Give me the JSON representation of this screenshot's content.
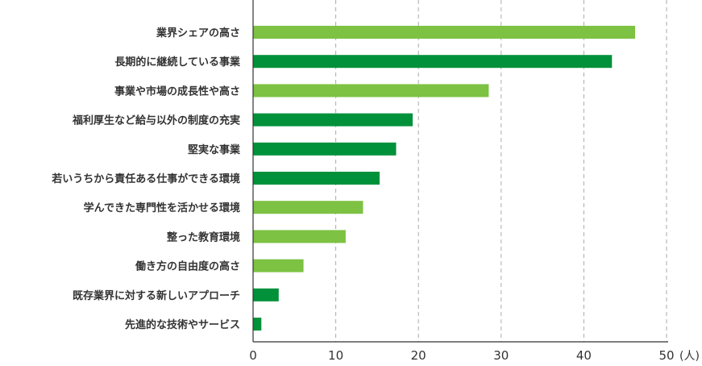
{
  "chart_data": {
    "type": "bar",
    "orientation": "horizontal",
    "categories": [
      "業界シェアの高さ",
      "長期的に継続している事業",
      "事業や市場の成長性や高さ",
      "福利厚生など給与以外の制度の充実",
      "堅実な事業",
      "若いうちから責任ある仕事ができる環境",
      "学んできた専門性を活かせる環境",
      "整った教育環境",
      "働き方の自由度の高さ",
      "既存業界に対する新しいアプローチ",
      "先進的な技術やサービス"
    ],
    "values": [
      46.2,
      43.4,
      28.5,
      19.3,
      17.3,
      15.3,
      13.3,
      11.2,
      6.1,
      3.1,
      1.0
    ],
    "bar_colors": [
      "#7dc242",
      "#00913a",
      "#7dc242",
      "#00913a",
      "#00913a",
      "#00913a",
      "#7dc242",
      "#7dc242",
      "#7dc242",
      "#00913a",
      "#00913a"
    ],
    "xlim": [
      0,
      50
    ],
    "xticks": [
      "0",
      "10",
      "20",
      "30",
      "40",
      "50"
    ],
    "x_unit": "(人)",
    "grid": true,
    "grid_style": "dashed-vertical"
  }
}
